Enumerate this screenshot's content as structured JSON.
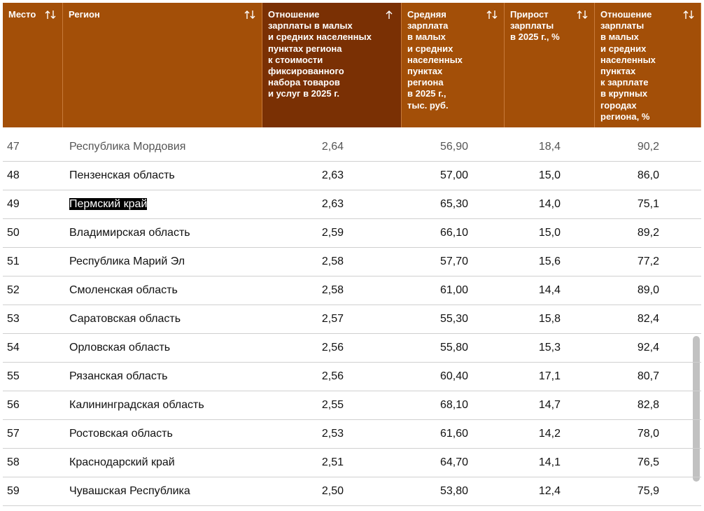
{
  "table": {
    "columns": [
      {
        "lines": [
          "Место"
        ]
      },
      {
        "lines": [
          "Регион"
        ]
      },
      {
        "lines": [
          "Отношение",
          "зарплаты в малых",
          "и средних населенных",
          "пунктах региона",
          "к стоимости",
          "фиксированного",
          "набора товаров",
          "и услуг в 2025 г."
        ]
      },
      {
        "lines": [
          "Средняя",
          "зарплата",
          "в малых",
          "и средних",
          "населенных",
          "пунктах",
          "региона",
          "в 2025 г.,",
          "тыс. руб."
        ]
      },
      {
        "lines": [
          "Прирост",
          "зарплаты",
          "в 2025 г., %"
        ]
      },
      {
        "lines": [
          "Отношение",
          "зарплаты",
          "в малых",
          "и средних",
          "населенных",
          "пунктах",
          "к зарплате",
          "в крупных",
          "городах",
          "региона, %"
        ]
      }
    ],
    "rows": [
      [
        "47",
        "Республика Мордовия",
        "2,64",
        "56,90",
        "18,4",
        "90,2"
      ],
      [
        "48",
        "Пензенская область",
        "2,63",
        "57,00",
        "15,0",
        "86,0"
      ],
      [
        "49",
        "Пермский край",
        "2,63",
        "65,30",
        "14,0",
        "75,1"
      ],
      [
        "50",
        "Владимирская область",
        "2,59",
        "66,10",
        "15,0",
        "89,2"
      ],
      [
        "51",
        "Республика Марий Эл",
        "2,58",
        "57,70",
        "15,6",
        "77,2"
      ],
      [
        "52",
        "Смоленская область",
        "2,58",
        "61,00",
        "14,4",
        "89,0"
      ],
      [
        "53",
        "Саратовская область",
        "2,57",
        "55,30",
        "15,8",
        "82,4"
      ],
      [
        "54",
        "Орловская область",
        "2,56",
        "55,80",
        "15,3",
        "92,4"
      ],
      [
        "55",
        "Рязанская область",
        "2,56",
        "60,40",
        "17,1",
        "80,7"
      ],
      [
        "56",
        "Калининградская область",
        "2,55",
        "68,10",
        "14,7",
        "82,8"
      ],
      [
        "57",
        "Ростовская область",
        "2,53",
        "61,60",
        "14,2",
        "78,0"
      ],
      [
        "58",
        "Краснодарский край",
        "2,51",
        "64,70",
        "14,1",
        "76,5"
      ],
      [
        "59",
        "Чувашская Республика",
        "2,50",
        "53,80",
        "12,4",
        "75,9"
      ]
    ]
  }
}
